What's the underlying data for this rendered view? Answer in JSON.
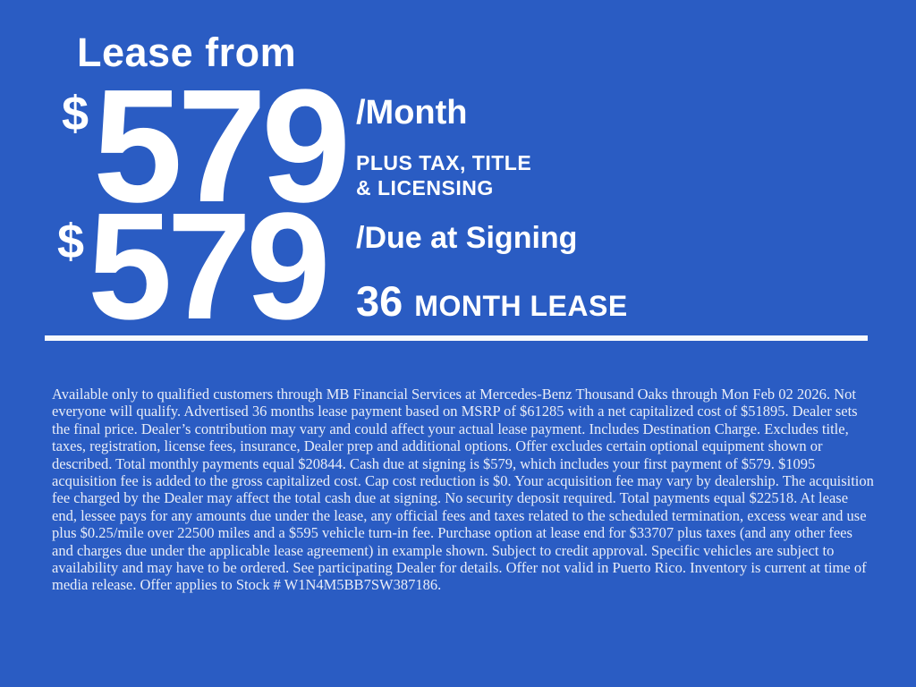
{
  "banner": {
    "background_color": "#2A5CC3",
    "text_color": "#FFFFFF",
    "title": "Lease from",
    "monthly_offer": {
      "currency_symbol": "$",
      "amount": "579",
      "period_label": "/Month",
      "note_lines": [
        "PLUS TAX, TITLE",
        "& LICENSING"
      ]
    },
    "signing_offer": {
      "currency_symbol": "$",
      "amount": "579",
      "period_label": "/Due at Signing",
      "term_number": "36",
      "term_label": "MONTH LEASE"
    }
  },
  "disclaimer": {
    "text": "Available only to qualified customers through MB Financial Services at Mercedes-Benz Thousand Oaks through Mon Feb 02 2026. Not everyone will qualify. Advertised 36 months lease payment based on MSRP of $61285 with a net capitalized cost of $51895. Dealer sets the final price. Dealer’s contribution may vary and could affect your actual lease payment. Includes Destination Charge. Excludes title, taxes, registration, license fees, insurance, Dealer prep and additional options. Offer excludes certain optional equipment shown or described. Total monthly payments equal $20844. Cash due at signing is $579, which includes your first payment of $579. $1095 acquisition fee is added to the gross capitalized cost. Cap cost reduction is $0. Your acquisition fee may vary by dealership. The acquisition fee charged by the Dealer may affect the total cash due at signing. No security deposit required. Total payments equal $22518. At lease end, lessee pays for any amounts due under the lease, any official fees and taxes related to the scheduled termination, excess wear and use plus $0.25/mile over 22500 miles and a $595 vehicle turn-in fee. Purchase option at lease end for $33707 plus taxes (and any other fees and charges due under the applicable lease agreement) in example shown. Subject to credit approval. Specific vehicles are subject to availability and may have to be ordered. See participating Dealer for details. Offer not valid in Puerto Rico. Inventory is current at time of media release. Offer applies to Stock # W1N4M5BB7SW387186."
  }
}
